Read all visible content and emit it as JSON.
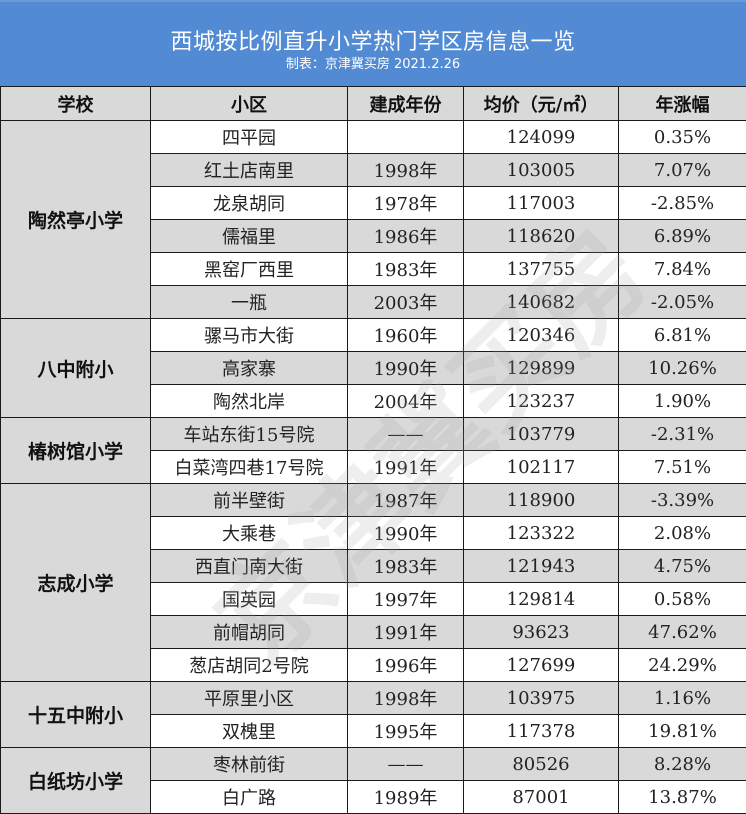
{
  "title": {
    "main": "西城按比例直升小学热门学区房信息一览",
    "sub": "制表：京津冀买房 2021.2.26"
  },
  "colors": {
    "title_band": "#528bd4",
    "header_bg": "#d9d9d9",
    "alt_row_bg": "#d9d9d9",
    "border": "#1a1a1a"
  },
  "table": {
    "headers": [
      "学校",
      "小区",
      "建成年份",
      "均价（元/㎡）",
      "年涨幅"
    ],
    "groups": [
      {
        "school": "陶然亭小学",
        "rows": [
          {
            "community": "四平园",
            "year": "",
            "price": "124099",
            "change": "0.35%"
          },
          {
            "community": "红土店南里",
            "year": "1998年",
            "price": "103005",
            "change": "7.07%"
          },
          {
            "community": "龙泉胡同",
            "year": "1978年",
            "price": "117003",
            "change": "-2.85%"
          },
          {
            "community": "儒福里",
            "year": "1986年",
            "price": "118620",
            "change": "6.89%"
          },
          {
            "community": "黑窑厂西里",
            "year": "1983年",
            "price": "137755",
            "change": "7.84%"
          },
          {
            "community": "一瓶",
            "year": "2003年",
            "price": "140682",
            "change": "-2.05%"
          }
        ]
      },
      {
        "school": "八中附小",
        "rows": [
          {
            "community": "骡马市大街",
            "year": "1960年",
            "price": "120346",
            "change": "6.81%"
          },
          {
            "community": "高家寨",
            "year": "1990年",
            "price": "129899",
            "change": "10.26%"
          },
          {
            "community": "陶然北岸",
            "year": "2004年",
            "price": "123237",
            "change": "1.90%"
          }
        ]
      },
      {
        "school": "椿树馆小学",
        "rows": [
          {
            "community": "车站东街15号院",
            "year": "——",
            "price": "103779",
            "change": "-2.31%"
          },
          {
            "community": "白菜湾四巷17号院",
            "year": "1991年",
            "price": "102117",
            "change": "7.51%"
          }
        ]
      },
      {
        "school": "志成小学",
        "rows": [
          {
            "community": "前半壁街",
            "year": "1987年",
            "price": "118900",
            "change": "-3.39%"
          },
          {
            "community": "大乘巷",
            "year": "1990年",
            "price": "123322",
            "change": "2.08%"
          },
          {
            "community": "西直门南大街",
            "year": "1983年",
            "price": "121943",
            "change": "4.75%"
          },
          {
            "community": "国英园",
            "year": "1997年",
            "price": "129814",
            "change": "0.58%"
          },
          {
            "community": "前帽胡同",
            "year": "1991年",
            "price": "93623",
            "change": "47.62%"
          },
          {
            "community": "葱店胡同2号院",
            "year": "1996年",
            "price": "127699",
            "change": "24.29%"
          }
        ]
      },
      {
        "school": "十五中附小",
        "rows": [
          {
            "community": "平原里小区",
            "year": "1998年",
            "price": "103975",
            "change": "1.16%"
          },
          {
            "community": "双槐里",
            "year": "1995年",
            "price": "117378",
            "change": "19.81%"
          }
        ]
      },
      {
        "school": "白纸坊小学",
        "rows": [
          {
            "community": "枣林前街",
            "year": "——",
            "price": "80526",
            "change": "8.28%"
          },
          {
            "community": "白广路",
            "year": "1989年",
            "price": "87001",
            "change": "13.87%"
          }
        ]
      }
    ]
  },
  "watermark": "京津冀买房"
}
